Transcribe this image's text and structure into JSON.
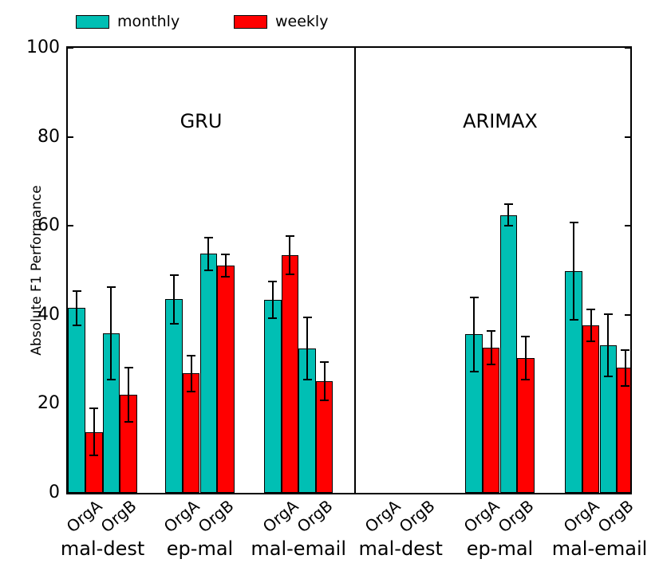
{
  "chart_data": {
    "type": "bar",
    "title": "",
    "ylabel": "Absolute F1 Performance",
    "ylim": [
      0,
      100
    ],
    "yticks": [
      0,
      20,
      40,
      60,
      80,
      100
    ],
    "grid": false,
    "error_bars": true,
    "legend": {
      "position": "top-left",
      "entries": [
        {
          "name": "monthly",
          "color": "#00BFB4"
        },
        {
          "name": "weekly",
          "color": "#FF0000"
        }
      ]
    },
    "axis_color": "#000000",
    "panels": [
      {
        "title": "GRU",
        "categories": [
          {
            "label": "mal-dest",
            "groups": [
              {
                "label": "OrgA",
                "bars": [
                  {
                    "series": "monthly",
                    "value": 41.5,
                    "error": 3.8
                  },
                  {
                    "series": "weekly",
                    "value": 13.7,
                    "error": 5.3
                  }
                ]
              },
              {
                "label": "OrgB",
                "bars": [
                  {
                    "series": "monthly",
                    "value": 35.9,
                    "error": 10.4
                  },
                  {
                    "series": "weekly",
                    "value": 22.1,
                    "error": 6.1
                  }
                ]
              }
            ]
          },
          {
            "label": "ep-mal",
            "groups": [
              {
                "label": "OrgA",
                "bars": [
                  {
                    "series": "monthly",
                    "value": 43.5,
                    "error": 5.5
                  },
                  {
                    "series": "weekly",
                    "value": 26.8,
                    "error": 4.1
                  }
                ]
              },
              {
                "label": "OrgB",
                "bars": [
                  {
                    "series": "monthly",
                    "value": 53.7,
                    "error": 3.7
                  },
                  {
                    "series": "weekly",
                    "value": 51.1,
                    "error": 2.5
                  }
                ]
              }
            ]
          },
          {
            "label": "mal-email",
            "groups": [
              {
                "label": "OrgA",
                "bars": [
                  {
                    "series": "monthly",
                    "value": 43.4,
                    "error": 4.1
                  },
                  {
                    "series": "weekly",
                    "value": 53.4,
                    "error": 4.3
                  }
                ]
              },
              {
                "label": "OrgB",
                "bars": [
                  {
                    "series": "monthly",
                    "value": 32.4,
                    "error": 7.0
                  },
                  {
                    "series": "weekly",
                    "value": 25.1,
                    "error": 4.3
                  }
                ]
              }
            ]
          }
        ]
      },
      {
        "title": "ARIMAX",
        "categories": [
          {
            "label": "mal-dest",
            "groups": [
              {
                "label": "OrgA",
                "bars": [
                  {
                    "series": "monthly",
                    "value": null,
                    "error": null
                  },
                  {
                    "series": "weekly",
                    "value": null,
                    "error": null
                  }
                ]
              },
              {
                "label": "OrgB",
                "bars": [
                  {
                    "series": "monthly",
                    "value": null,
                    "error": null
                  },
                  {
                    "series": "weekly",
                    "value": null,
                    "error": null
                  }
                ]
              }
            ]
          },
          {
            "label": "ep-mal",
            "groups": [
              {
                "label": "OrgA",
                "bars": [
                  {
                    "series": "monthly",
                    "value": 35.6,
                    "error": 8.3
                  },
                  {
                    "series": "weekly",
                    "value": 32.6,
                    "error": 3.8
                  }
                ]
              },
              {
                "label": "OrgB",
                "bars": [
                  {
                    "series": "monthly",
                    "value": 62.4,
                    "error": 2.4
                  },
                  {
                    "series": "weekly",
                    "value": 30.3,
                    "error": 4.9
                  }
                ]
              }
            ]
          },
          {
            "label": "mal-email",
            "groups": [
              {
                "label": "OrgA",
                "bars": [
                  {
                    "series": "monthly",
                    "value": 49.8,
                    "error": 11.0
                  },
                  {
                    "series": "weekly",
                    "value": 37.6,
                    "error": 3.6
                  }
                ]
              },
              {
                "label": "OrgB",
                "bars": [
                  {
                    "series": "monthly",
                    "value": 33.2,
                    "error": 7.0
                  },
                  {
                    "series": "weekly",
                    "value": 28.1,
                    "error": 4.0
                  }
                ]
              }
            ]
          }
        ]
      }
    ]
  }
}
